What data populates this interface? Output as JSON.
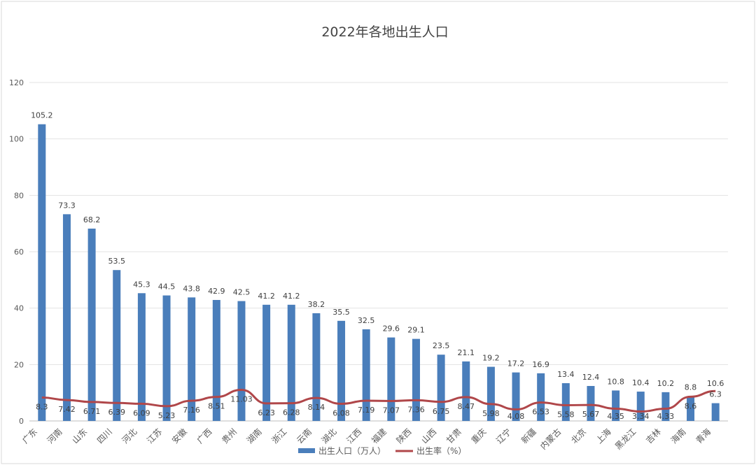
{
  "chart_data": {
    "type": "bar+line",
    "title": "2022年各地出生人口",
    "ylim": [
      0,
      120
    ],
    "yticks": [
      0,
      20,
      40,
      60,
      80,
      100,
      120
    ],
    "grid": true,
    "legend_position": "bottom",
    "categories": [
      "广东",
      "河南",
      "山东",
      "四川",
      "河北",
      "江苏",
      "安徽",
      "广西",
      "贵州",
      "湖南",
      "浙江",
      "云南",
      "湖北",
      "江西",
      "福建",
      "陕西",
      "山西",
      "甘肃",
      "重庆",
      "辽宁",
      "新疆",
      "内蒙古",
      "北京",
      "上海",
      "黑龙江",
      "吉林",
      "海南",
      "青海"
    ],
    "series": [
      {
        "name": "出生人口（万人）",
        "type": "bar",
        "color": "#4a7ebb",
        "values": [
          105.2,
          73.3,
          68.2,
          53.5,
          45.3,
          44.5,
          43.8,
          42.9,
          42.5,
          41.2,
          41.2,
          38.2,
          35.5,
          32.5,
          29.6,
          29.1,
          23.5,
          21.1,
          19.2,
          17.2,
          16.9,
          13.4,
          12.4,
          10.8,
          10.4,
          10.2,
          8.8,
          6.3
        ]
      },
      {
        "name": "出生率（%）",
        "type": "line",
        "color": "#b0474a",
        "values": [
          8.3,
          7.42,
          6.71,
          6.39,
          6.09,
          5.23,
          7.16,
          8.51,
          11.03,
          6.23,
          6.28,
          8.14,
          6.08,
          7.19,
          7.07,
          7.36,
          6.75,
          8.47,
          5.98,
          4.08,
          6.53,
          5.58,
          5.67,
          4.35,
          3.34,
          4.33,
          8.6,
          10.6
        ]
      }
    ]
  }
}
